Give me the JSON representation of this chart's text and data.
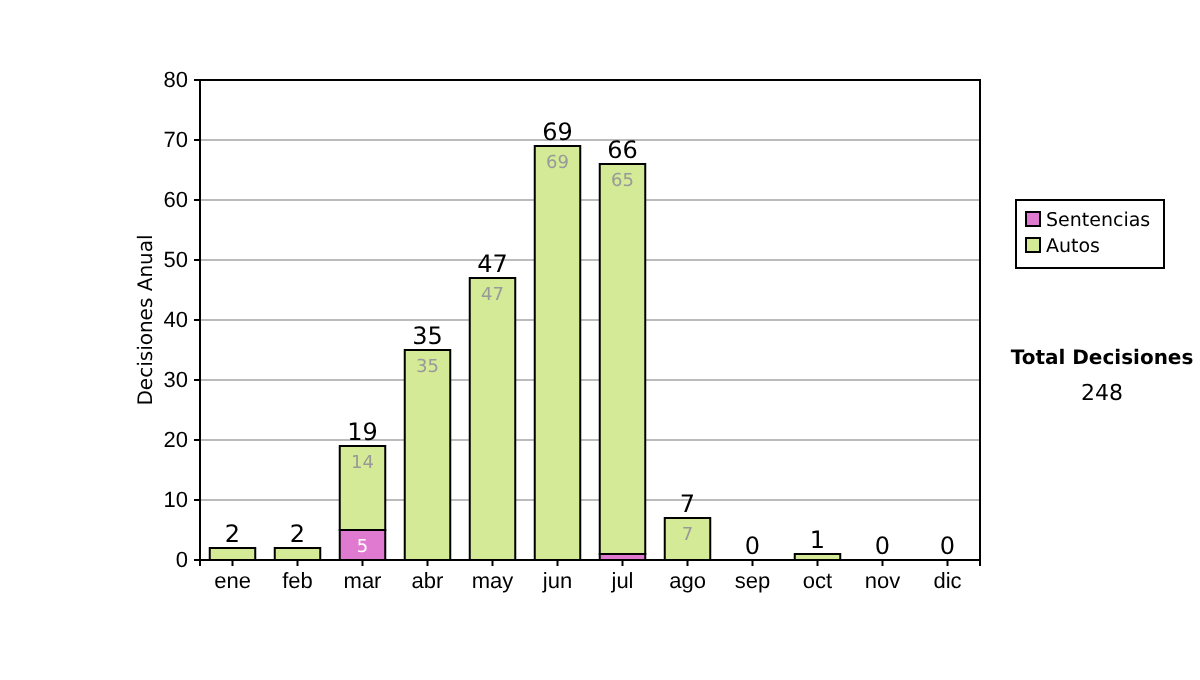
{
  "chart_data": {
    "type": "bar",
    "stacked": true,
    "ylabel": "Decisiones Anual",
    "categories": [
      "ene",
      "feb",
      "mar",
      "abr",
      "may",
      "jun",
      "jul",
      "ago",
      "sep",
      "oct",
      "nov",
      "dic"
    ],
    "series": [
      {
        "name": "Sentencias",
        "color": "#e07ad0",
        "values": [
          0,
          0,
          5,
          0,
          0,
          0,
          1,
          0,
          0,
          0,
          0,
          0
        ],
        "value_labels": [
          null,
          null,
          "5",
          null,
          null,
          null,
          null,
          null,
          null,
          null,
          null,
          null
        ]
      },
      {
        "name": "Autos",
        "color": "#d4ea96",
        "values": [
          2,
          2,
          14,
          35,
          47,
          69,
          65,
          7,
          0,
          1,
          0,
          0
        ],
        "value_labels": [
          null,
          null,
          "14",
          "35",
          "47",
          "69",
          "65",
          "7",
          null,
          null,
          null,
          null
        ]
      }
    ],
    "totals": [
      "2",
      "2",
      "19",
      "35",
      "47",
      "69",
      "66",
      "7",
      "0",
      "1",
      "0",
      "0"
    ],
    "ylim": [
      0,
      80
    ],
    "yticks": [
      0,
      10,
      20,
      30,
      40,
      50,
      60,
      70,
      80
    ],
    "grid": "y",
    "legend": "right",
    "annotations": [
      "Total Decisiones",
      "248"
    ]
  }
}
